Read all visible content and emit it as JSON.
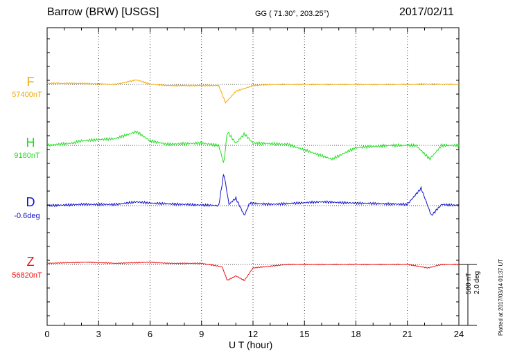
{
  "header": {
    "station": "Barrow (BRW)  [USGS]",
    "coords": "GG ( 71.30°, 203.25°)",
    "date": "2017/02/11"
  },
  "components": [
    {
      "letter": "F",
      "baseline": "57400nT",
      "color": "#f5a800"
    },
    {
      "letter": "H",
      "baseline": "9180nT",
      "color": "#22dd22"
    },
    {
      "letter": "D",
      "baseline": "-0.6deg",
      "color": "#1010cc"
    },
    {
      "letter": "Z",
      "baseline": "56820nT",
      "color": "#ee1111"
    }
  ],
  "scale": {
    "nt": "500 nT",
    "deg": "2.0 deg"
  },
  "footer": {
    "plotted": "Plotted at 2017/03/14 01:37 UT"
  },
  "chart_data": {
    "type": "line",
    "xlabel": "U T (hour)",
    "xlim": [
      0,
      24
    ],
    "xticks": [
      "0",
      "3",
      "6",
      "9",
      "12",
      "15",
      "18",
      "21",
      "24"
    ],
    "grid": true,
    "series": [
      {
        "name": "F",
        "units": "nT offset from baseline",
        "x": [
          0,
          2,
          4,
          5.2,
          6,
          7,
          9,
          10,
          10.4,
          11,
          12,
          13,
          15,
          17,
          19,
          21,
          22,
          24
        ],
        "values": [
          5,
          5,
          0,
          20,
          2,
          -5,
          -5,
          -5,
          -80,
          -30,
          -5,
          0,
          0,
          0,
          0,
          0,
          2,
          0
        ]
      },
      {
        "name": "H",
        "units": "nT offset from baseline",
        "x": [
          0,
          1.5,
          2,
          4,
          5.2,
          6,
          7,
          9,
          10,
          10.3,
          10.5,
          11,
          11.5,
          12,
          14,
          16.6,
          18,
          20,
          21.5,
          22.3,
          23,
          24
        ],
        "values": [
          0,
          10,
          20,
          30,
          60,
          20,
          5,
          10,
          0,
          -80,
          60,
          10,
          50,
          10,
          5,
          -60,
          -10,
          0,
          0,
          -60,
          0,
          0
        ]
      },
      {
        "name": "D",
        "units": "deg offset from baseline",
        "x": [
          0,
          2,
          4,
          5.2,
          6,
          8,
          10,
          10.3,
          10.6,
          11,
          11.5,
          11.8,
          13,
          16,
          18,
          21,
          21.8,
          22.4,
          23,
          24
        ],
        "values": [
          0,
          0.05,
          0.05,
          0.15,
          0.1,
          0.05,
          0,
          1.3,
          0.05,
          0.3,
          -0.4,
          0.1,
          0.05,
          0.15,
          0.1,
          0.05,
          0.7,
          -0.4,
          0.05,
          0
        ]
      },
      {
        "name": "Z",
        "units": "nT offset from baseline",
        "x": [
          0,
          2.3,
          4,
          6,
          7,
          9,
          10.2,
          10.5,
          11,
          11.5,
          12,
          14,
          18,
          21,
          22.2,
          23,
          24
        ],
        "values": [
          5,
          10,
          5,
          10,
          5,
          5,
          -10,
          -70,
          -50,
          -70,
          -15,
          0,
          0,
          0,
          -15,
          0,
          0
        ]
      }
    ]
  }
}
